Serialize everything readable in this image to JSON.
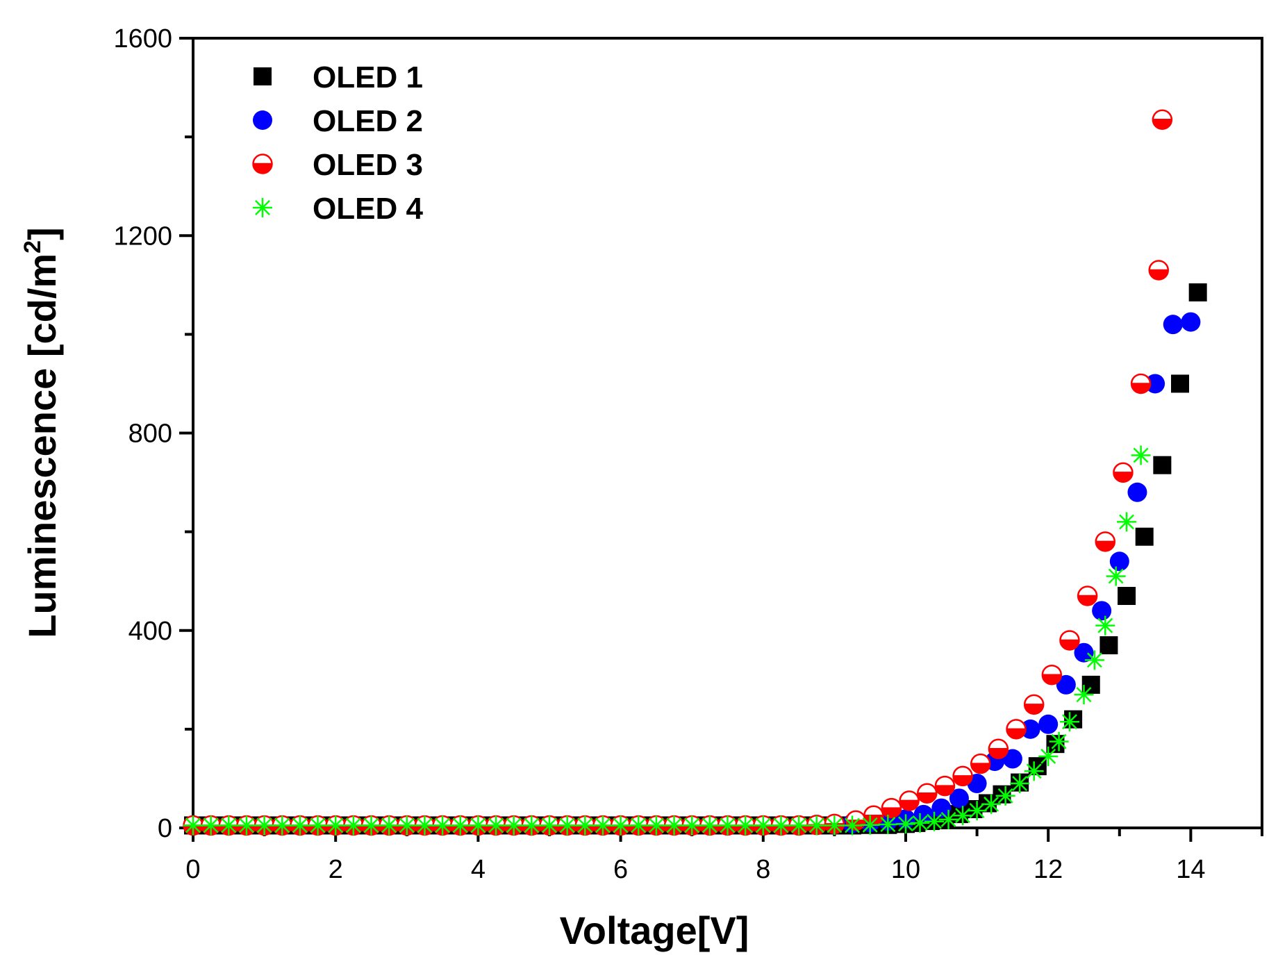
{
  "chart_data": {
    "type": "scatter",
    "title": "",
    "xlabel": "Voltage[V]",
    "ylabel": "Luminescence [cd/m",
    "ylabel_sup": "2",
    "ylabel_close": "]",
    "xlim": [
      0,
      15
    ],
    "ylim": [
      0,
      1600
    ],
    "x_ticks": [
      0,
      2,
      4,
      6,
      8,
      10,
      12,
      14
    ],
    "x_tick_labels": [
      "0",
      "2",
      "4",
      "6",
      "8",
      "10",
      "12",
      "14"
    ],
    "y_ticks": [
      0,
      400,
      800,
      1200,
      1600
    ],
    "y_tick_labels": [
      "0",
      "400",
      "800",
      "1200",
      "1600"
    ],
    "x_minor_step": 1,
    "y_minor_step": 200,
    "grid": false,
    "legend_position": "top-left",
    "series": [
      {
        "name": "OLED 1",
        "marker": "square",
        "color": "#000000",
        "x": [
          0.0,
          0.25,
          0.5,
          0.75,
          1.0,
          1.25,
          1.5,
          1.75,
          2.0,
          2.25,
          2.5,
          2.75,
          3.0,
          3.25,
          3.5,
          3.75,
          4.0,
          4.25,
          4.5,
          4.75,
          5.0,
          5.25,
          5.5,
          5.75,
          6.0,
          6.25,
          6.5,
          6.75,
          7.0,
          7.25,
          7.5,
          7.75,
          8.0,
          8.25,
          8.5,
          8.75,
          9.0,
          9.25,
          9.5,
          9.75,
          10.0,
          10.15,
          10.35,
          10.55,
          10.75,
          10.95,
          11.15,
          11.35,
          11.6,
          11.85,
          12.1,
          12.35,
          12.6,
          12.85,
          13.1,
          13.35,
          13.6,
          13.85,
          14.1
        ],
        "y": [
          5,
          5,
          5,
          5,
          5,
          5,
          5,
          5,
          5,
          5,
          5,
          5,
          5,
          5,
          5,
          5,
          5,
          5,
          5,
          5,
          5,
          5,
          5,
          5,
          5,
          5,
          5,
          5,
          5,
          5,
          5,
          5,
          5,
          5,
          5,
          5,
          5,
          5,
          6,
          6,
          8,
          10,
          14,
          20,
          28,
          38,
          50,
          68,
          92,
          125,
          170,
          220,
          290,
          370,
          470,
          590,
          735,
          900,
          1085
        ]
      },
      {
        "name": "OLED 2",
        "marker": "circle",
        "color": "#0000ff",
        "x": [
          0.0,
          0.25,
          0.5,
          0.75,
          1.0,
          1.25,
          1.5,
          1.75,
          2.0,
          2.25,
          2.5,
          2.75,
          3.0,
          3.25,
          3.5,
          3.75,
          4.0,
          4.25,
          4.5,
          4.75,
          5.0,
          5.25,
          5.5,
          5.75,
          6.0,
          6.25,
          6.5,
          6.75,
          7.0,
          7.25,
          7.5,
          7.75,
          8.0,
          8.25,
          8.5,
          8.75,
          9.0,
          9.25,
          9.5,
          9.75,
          10.0,
          10.25,
          10.5,
          10.75,
          11.0,
          11.25,
          11.5,
          11.75,
          12.0,
          12.25,
          12.5,
          12.75,
          13.0,
          13.25,
          13.5,
          13.75,
          14.0
        ],
        "y": [
          5,
          5,
          5,
          5,
          5,
          5,
          5,
          5,
          5,
          5,
          5,
          5,
          5,
          5,
          5,
          5,
          5,
          5,
          5,
          5,
          5,
          5,
          5,
          5,
          5,
          5,
          5,
          5,
          5,
          5,
          5,
          5,
          5,
          5,
          5,
          6,
          7,
          9,
          11,
          14,
          18,
          27,
          40,
          60,
          90,
          135,
          140,
          200,
          210,
          290,
          355,
          440,
          540,
          680,
          900,
          1020,
          1025
        ]
      },
      {
        "name": "OLED 3",
        "marker": "half-circle",
        "color": "#ff0000",
        "x": [
          0.0,
          0.25,
          0.5,
          0.75,
          1.0,
          1.25,
          1.5,
          1.75,
          2.0,
          2.25,
          2.5,
          2.75,
          3.0,
          3.25,
          3.5,
          3.75,
          4.0,
          4.25,
          4.5,
          4.75,
          5.0,
          5.25,
          5.5,
          5.75,
          6.0,
          6.25,
          6.5,
          6.75,
          7.0,
          7.25,
          7.5,
          7.75,
          8.0,
          8.25,
          8.5,
          8.75,
          9.0,
          9.3,
          9.55,
          9.8,
          10.05,
          10.3,
          10.55,
          10.8,
          11.05,
          11.3,
          11.55,
          11.8,
          12.05,
          12.3,
          12.55,
          12.8,
          13.05,
          13.3,
          13.55,
          13.6
        ],
        "y": [
          5,
          5,
          5,
          5,
          5,
          5,
          5,
          5,
          5,
          5,
          5,
          5,
          5,
          5,
          5,
          5,
          5,
          5,
          5,
          5,
          5,
          5,
          5,
          5,
          5,
          5,
          5,
          5,
          5,
          5,
          5,
          5,
          5,
          5,
          5,
          6,
          8,
          15,
          25,
          40,
          55,
          70,
          85,
          105,
          130,
          160,
          200,
          250,
          310,
          380,
          470,
          580,
          720,
          900,
          1130,
          1435
        ]
      },
      {
        "name": "OLED 4",
        "marker": "asterisk",
        "color": "#00ff00",
        "x": [
          0.0,
          0.25,
          0.5,
          0.75,
          1.0,
          1.25,
          1.5,
          1.75,
          2.0,
          2.25,
          2.5,
          2.75,
          3.0,
          3.25,
          3.5,
          3.75,
          4.0,
          4.25,
          4.5,
          4.75,
          5.0,
          5.25,
          5.5,
          5.75,
          6.0,
          6.25,
          6.5,
          6.75,
          7.0,
          7.25,
          7.5,
          7.75,
          8.0,
          8.25,
          8.5,
          8.75,
          9.0,
          9.25,
          9.5,
          9.75,
          10.0,
          10.2,
          10.4,
          10.6,
          10.8,
          11.0,
          11.2,
          11.4,
          11.6,
          11.8,
          12.0,
          12.15,
          12.3,
          12.5,
          12.65,
          12.8,
          12.95,
          13.1,
          13.3
        ],
        "y": [
          5,
          5,
          5,
          5,
          5,
          5,
          5,
          5,
          5,
          5,
          5,
          5,
          5,
          5,
          5,
          5,
          5,
          5,
          5,
          5,
          5,
          5,
          5,
          5,
          5,
          5,
          5,
          5,
          5,
          5,
          5,
          5,
          5,
          5,
          5,
          5,
          5,
          5,
          6,
          7,
          8,
          10,
          13,
          17,
          25,
          35,
          48,
          65,
          90,
          115,
          145,
          175,
          215,
          270,
          340,
          410,
          510,
          620,
          755
        ]
      }
    ]
  }
}
